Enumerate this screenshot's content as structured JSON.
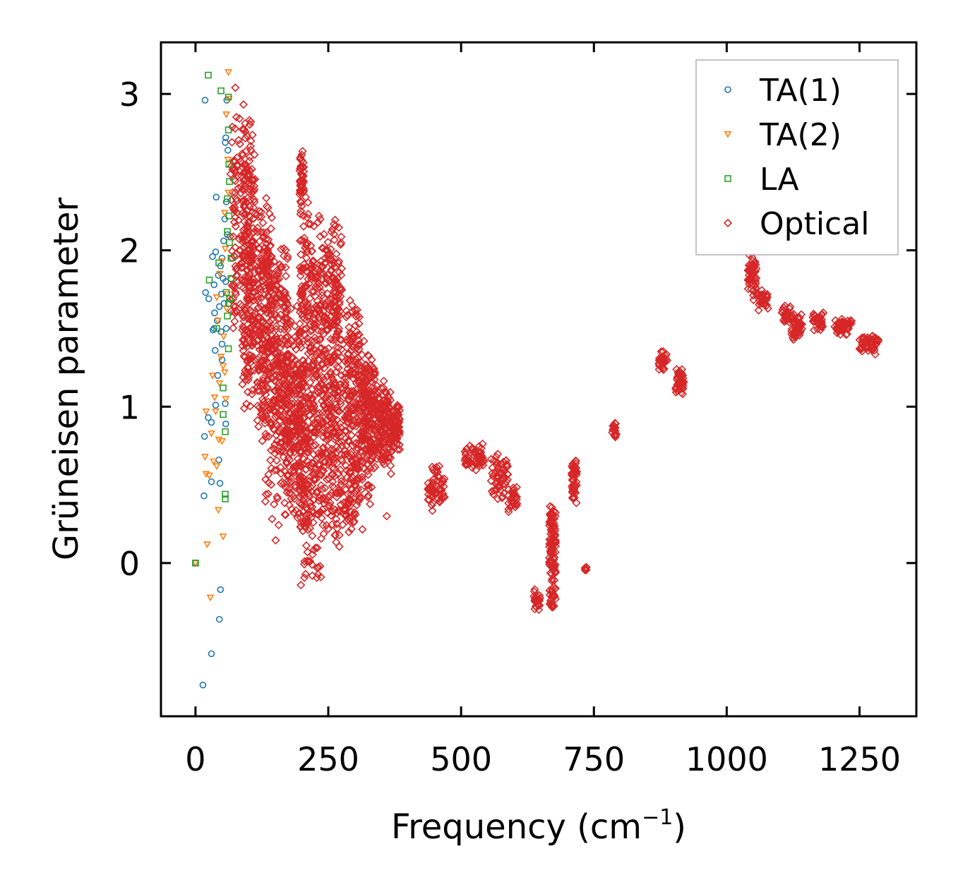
{
  "chart_data": {
    "type": "scatter",
    "title": "",
    "xlabel": "Frequency (cm",
    "xlabel_sup": "−1",
    "xlabel_close": ")",
    "ylabel": "Grüneisen parameter",
    "xlim": [
      -65,
      1357
    ],
    "ylim": [
      -0.98,
      3.33
    ],
    "xticks": [
      0,
      250,
      500,
      750,
      1000,
      1250
    ],
    "xtick_labels": [
      "0",
      "250",
      "500",
      "750",
      "1000",
      "1250"
    ],
    "yticks": [
      0,
      1,
      2,
      3
    ],
    "ytick_labels": [
      "0",
      "1",
      "2",
      "3"
    ],
    "legend_position": "top-right",
    "grid": false,
    "series": [
      {
        "name": "TA(1)",
        "marker": "circle",
        "color": "#1f77b4",
        "points": [
          [
            0,
            0
          ],
          [
            18,
            2.96
          ],
          [
            14,
            -0.78
          ],
          [
            30,
            -0.58
          ],
          [
            45,
            -0.36
          ],
          [
            47,
            -0.17
          ],
          [
            16,
            0.43
          ],
          [
            30,
            0.52
          ],
          [
            46,
            0.51
          ],
          [
            44,
            0.66
          ],
          [
            17,
            0.81
          ],
          [
            24,
            0.93
          ],
          [
            30,
            0.9
          ],
          [
            38,
            1.01
          ],
          [
            56,
            1.02
          ],
          [
            57,
            0.89
          ],
          [
            35,
            1.5
          ],
          [
            33,
            1.49
          ],
          [
            37,
            1.36
          ],
          [
            50,
            1.4
          ],
          [
            41,
            1.55
          ],
          [
            48,
            1.48
          ],
          [
            19,
            1.73
          ],
          [
            25,
            1.69
          ],
          [
            35,
            1.78
          ],
          [
            45,
            1.64
          ],
          [
            32,
            1.96
          ],
          [
            38,
            1.99
          ],
          [
            43,
            1.84
          ],
          [
            49,
            1.72
          ],
          [
            39,
            2.34
          ],
          [
            53,
            2.06
          ],
          [
            55,
            2.2
          ],
          [
            58,
            2.31
          ],
          [
            56,
            2.69
          ],
          [
            61,
            2.64
          ],
          [
            57,
            2.72
          ],
          [
            59,
            2.96
          ],
          [
            50,
            1.95
          ],
          [
            52,
            1.82
          ],
          [
            47,
            1.9
          ],
          [
            57,
            1.8
          ],
          [
            60,
            2.1
          ],
          [
            54,
            1.66
          ],
          [
            42,
            1.2
          ],
          [
            50,
            1.3
          ],
          [
            58,
            1.5
          ],
          [
            36,
            1.6
          ]
        ]
      },
      {
        "name": "TA(2)",
        "marker": "triangle-down",
        "color": "#ff7f0e",
        "points": [
          [
            0,
            0
          ],
          [
            28,
            -0.22
          ],
          [
            22,
            0.12
          ],
          [
            52,
            0.17
          ],
          [
            43,
            0.34
          ],
          [
            34,
            0.65
          ],
          [
            40,
            0.62
          ],
          [
            26,
            0.56
          ],
          [
            20,
            0.57
          ],
          [
            18,
            0.68
          ],
          [
            44,
            0.79
          ],
          [
            50,
            0.78
          ],
          [
            20,
            0.97
          ],
          [
            30,
            0.83
          ],
          [
            38,
            0.97
          ],
          [
            36,
            1.06
          ],
          [
            32,
            1.2
          ],
          [
            45,
            1.15
          ],
          [
            55,
            1.22
          ],
          [
            48,
            1.32
          ],
          [
            53,
            1.45
          ],
          [
            42,
            1.55
          ],
          [
            58,
            1.63
          ],
          [
            46,
            1.85
          ],
          [
            50,
            1.93
          ],
          [
            56,
            2.01
          ],
          [
            55,
            2.24
          ],
          [
            62,
            2.37
          ],
          [
            61,
            2.58
          ],
          [
            58,
            2.87
          ],
          [
            62,
            3.14
          ],
          [
            63,
            2.97
          ],
          [
            60,
            1.72
          ],
          [
            52,
            1.26
          ],
          [
            40,
            1.7
          ],
          [
            57,
            1.05
          ]
        ]
      },
      {
        "name": "LA",
        "marker": "square",
        "color": "#2ca02c",
        "points": [
          [
            0,
            0
          ],
          [
            24,
            3.12
          ],
          [
            48,
            3.02
          ],
          [
            62,
            2.98
          ],
          [
            56,
            0.41
          ],
          [
            56,
            0.44
          ],
          [
            56,
            0.84
          ],
          [
            52,
            0.95
          ],
          [
            52,
            1.12
          ],
          [
            62,
            1.37
          ],
          [
            60,
            1.58
          ],
          [
            62,
            1.66
          ],
          [
            64,
            1.69
          ],
          [
            67,
            1.82
          ],
          [
            67,
            1.95
          ],
          [
            64,
            2.05
          ],
          [
            60,
            2.12
          ],
          [
            63,
            2.22
          ],
          [
            60,
            2.33
          ],
          [
            64,
            2.44
          ],
          [
            63,
            2.55
          ],
          [
            62,
            2.77
          ],
          [
            26,
            1.81
          ],
          [
            40,
            1.5
          ],
          [
            58,
            1.73
          ],
          [
            44,
            1.92
          ]
        ]
      },
      {
        "name": "Optical",
        "marker": "diamond",
        "color": "#d62728",
        "clusters": [
          {
            "fx": 72,
            "fw": 8,
            "g0": 2.75,
            "g1": 1.55,
            "gw": 0.12,
            "n": 40
          },
          {
            "fx": 82,
            "fw": 10,
            "g0": 2.85,
            "g1": 1.6,
            "gw": 0.15,
            "n": 50
          },
          {
            "fx": 100,
            "fw": 12,
            "g0": 2.65,
            "g1": 1.2,
            "gw": 0.3,
            "n": 260
          },
          {
            "fx": 130,
            "fw": 14,
            "g0": 2.15,
            "g1": 0.95,
            "gw": 0.25,
            "n": 260
          },
          {
            "fx": 160,
            "fw": 14,
            "g0": 1.85,
            "g1": 0.75,
            "gw": 0.25,
            "n": 220
          },
          {
            "fx": 185,
            "fw": 14,
            "g0": 1.45,
            "g1": 0.5,
            "gw": 0.25,
            "n": 200
          },
          {
            "fx": 200,
            "fw": 4,
            "g0": 2.6,
            "g1": 2.25,
            "gw": 0.05,
            "n": 40
          },
          {
            "fx": 208,
            "fw": 12,
            "g0": 2.15,
            "g1": 0.1,
            "gw": 0.25,
            "n": 260
          },
          {
            "fx": 235,
            "fw": 14,
            "g0": 2.0,
            "g1": 0.35,
            "gw": 0.3,
            "n": 240
          },
          {
            "fx": 262,
            "fw": 14,
            "g0": 1.95,
            "g1": 0.35,
            "gw": 0.3,
            "n": 260
          },
          {
            "fx": 295,
            "fw": 14,
            "g0": 1.55,
            "g1": 0.4,
            "gw": 0.25,
            "n": 220
          },
          {
            "fx": 325,
            "fw": 14,
            "g0": 1.25,
            "g1": 0.55,
            "gw": 0.2,
            "n": 200
          },
          {
            "fx": 355,
            "fw": 14,
            "g0": 1.05,
            "g1": 0.7,
            "gw": 0.15,
            "n": 150
          },
          {
            "fx": 375,
            "fw": 10,
            "g0": 0.95,
            "g1": 0.75,
            "gw": 0.1,
            "n": 80
          },
          {
            "fx": 150,
            "fw": 20,
            "g0": 0.75,
            "g1": 0.25,
            "gw": 0.12,
            "n": 30
          },
          {
            "fx": 290,
            "fw": 25,
            "g0": 0.5,
            "g1": 0.2,
            "gw": 0.1,
            "n": 30
          },
          {
            "fx": 220,
            "fw": 15,
            "g0": 0.1,
            "g1": -0.08,
            "gw": 0.05,
            "n": 15
          },
          {
            "fx": 453,
            "fw": 16,
            "g0": 0.58,
            "g1": 0.38,
            "gw": 0.06,
            "n": 60
          },
          {
            "fx": 525,
            "fw": 18,
            "g0": 0.73,
            "g1": 0.63,
            "gw": 0.05,
            "n": 60
          },
          {
            "fx": 572,
            "fw": 16,
            "g0": 0.65,
            "g1": 0.45,
            "gw": 0.06,
            "n": 60
          },
          {
            "fx": 597,
            "fw": 8,
            "g0": 0.45,
            "g1": 0.36,
            "gw": 0.04,
            "n": 30
          },
          {
            "fx": 643,
            "fw": 6,
            "g0": -0.2,
            "g1": -0.28,
            "gw": 0.04,
            "n": 25
          },
          {
            "fx": 672,
            "fw": 6,
            "g0": 0.36,
            "g1": -0.27,
            "gw": 0.05,
            "n": 120
          },
          {
            "fx": 713,
            "fw": 5,
            "g0": 0.62,
            "g1": 0.42,
            "gw": 0.04,
            "n": 50
          },
          {
            "fx": 734,
            "fw": 2,
            "g0": -0.03,
            "g1": -0.05,
            "gw": 0.01,
            "n": 5
          },
          {
            "fx": 788,
            "fw": 4,
            "g0": 0.89,
            "g1": 0.81,
            "gw": 0.02,
            "n": 20
          },
          {
            "fx": 880,
            "fw": 8,
            "g0": 1.33,
            "g1": 1.25,
            "gw": 0.03,
            "n": 30
          },
          {
            "fx": 912,
            "fw": 8,
            "g0": 1.22,
            "g1": 1.1,
            "gw": 0.04,
            "n": 40
          },
          {
            "fx": 1048,
            "fw": 8,
            "g0": 1.95,
            "g1": 1.72,
            "gw": 0.05,
            "n": 60
          },
          {
            "fx": 1068,
            "fw": 10,
            "g0": 1.72,
            "g1": 1.64,
            "gw": 0.03,
            "n": 30
          },
          {
            "fx": 1112,
            "fw": 8,
            "g0": 1.62,
            "g1": 1.55,
            "gw": 0.03,
            "n": 25
          },
          {
            "fx": 1132,
            "fw": 10,
            "g0": 1.57,
            "g1": 1.46,
            "gw": 0.04,
            "n": 50
          },
          {
            "fx": 1172,
            "fw": 10,
            "g0": 1.59,
            "g1": 1.5,
            "gw": 0.03,
            "n": 40
          },
          {
            "fx": 1218,
            "fw": 18,
            "g0": 1.55,
            "g1": 1.48,
            "gw": 0.03,
            "n": 50
          },
          {
            "fx": 1268,
            "fw": 18,
            "g0": 1.45,
            "g1": 1.36,
            "gw": 0.03,
            "n": 50
          }
        ],
        "points": [
          [
            75,
            3.04
          ],
          [
            200,
            2.61
          ],
          [
            360,
            0.3
          ],
          [
            236,
            -0.09
          ],
          [
            734,
            -0.04
          ]
        ]
      }
    ]
  }
}
